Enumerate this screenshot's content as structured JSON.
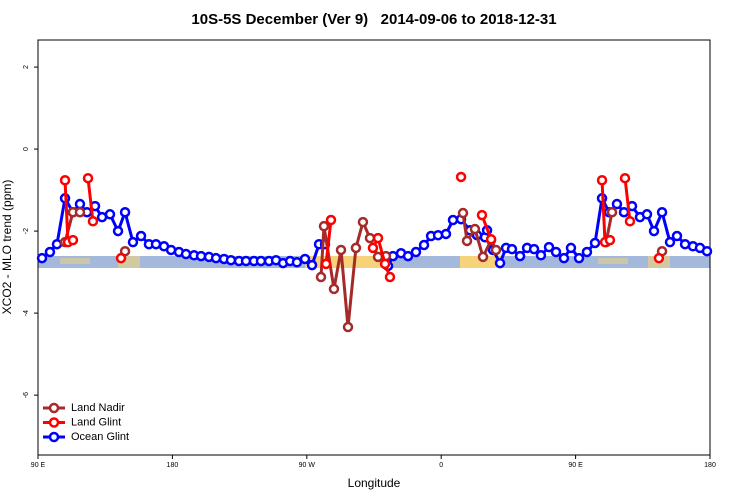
{
  "chart_data": {
    "type": "line",
    "title": "10S-5S December (Ver 9)   2014-09-06 to 2018-12-31",
    "x_label": "Longitude",
    "y_label": "XCO2 - MLO trend (ppm)",
    "xlim": [
      90,
      540
    ],
    "ylim": [
      -7.46,
      2.66
    ],
    "xticks": [
      {
        "value": 90,
        "label": "90 E"
      },
      180,
      {
        "value": 270,
        "label": "90 W"
      },
      {
        "value": 360,
        "label": "0"
      },
      {
        "value": 450,
        "label": "90 E"
      },
      {
        "value": 540,
        "label": "180"
      }
    ],
    "yticks": [
      -6,
      -4,
      -2,
      0,
      2
    ],
    "legend": "bottom-left",
    "series": [
      {
        "name": "Land Nadir",
        "color": "#a52a2a",
        "x": [
          108.1,
          113.4,
          118.1,
          null,
          148.3,
          null,
          279.5,
          281.5,
          288.2,
          292.9,
          297.6,
          302.9,
          307.6,
          312.3,
          317.7,
          323,
          null,
          374.6,
          377.3,
          382.6,
          388,
          393.4,
          396.7,
          null,
          470.4,
          474.4,
          null,
          507.9
        ],
        "values": [
          -2.27,
          -1.54,
          -1.54,
          null,
          -2.49,
          null,
          -3.12,
          -1.88,
          -3.41,
          -2.46,
          -4.34,
          -2.41,
          -1.78,
          -2.17,
          -2.63,
          -2.61,
          null,
          -1.56,
          -2.24,
          -1.95,
          -2.63,
          -2.22,
          -2.46,
          null,
          -2.27,
          -1.54,
          null,
          -2.49
        ]
      },
      {
        "name": "Land Glint",
        "color": "#ff0000",
        "x": [
          108.1,
          110.1,
          113.4,
          null,
          123.5,
          126.8,
          null,
          145.6,
          null,
          282.9,
          286.2,
          null,
          314.3,
          317.7,
          322.4,
          325.7,
          null,
          373.3,
          null,
          387.3,
          393.4,
          null,
          467.7,
          469.7,
          473,
          null,
          483.1,
          486.4,
          null,
          505.8
        ],
        "values": [
          -0.76,
          -2.27,
          -2.22,
          null,
          -0.71,
          -1.76,
          null,
          -2.66,
          null,
          -2.8,
          -1.73,
          null,
          -2.41,
          -2.17,
          -2.8,
          -3.12,
          null,
          -0.68,
          null,
          -1.61,
          -2.2,
          null,
          -0.76,
          -2.27,
          -2.22,
          null,
          -0.71,
          -1.76,
          null,
          -2.66
        ]
      },
      {
        "name": "Ocean Glint",
        "color": "#0000ff",
        "x": [
          92.7,
          98,
          102.7,
          108.1,
          113.4,
          118.1,
          122.8,
          128.2,
          132.9,
          138.2,
          143.6,
          148.3,
          153.6,
          159,
          164.3,
          169,
          174.4,
          179.1,
          184.4,
          189.1,
          194.5,
          199.2,
          204.5,
          209.2,
          214.6,
          219.2,
          224.6,
          229.3,
          234.6,
          239.3,
          244.7,
          249.4,
          254.1,
          258.8,
          263.4,
          268.8,
          273.5,
          278.2,
          282.2,
          null,
          324.4,
          327.7,
          333.1,
          337.8,
          343.1,
          348.5,
          353.2,
          357.9,
          363.2,
          367.9,
          373.3,
          379.3,
          384,
          389.3,
          390.7,
          394.7,
          399.4,
          403.4,
          407.4,
          412.8,
          417.5,
          422.2,
          426.8,
          432.2,
          436.9,
          442.2,
          446.9,
          452.3,
          457.6,
          463,
          467.7,
          472.4,
          477.7,
          482.4,
          487.8,
          493.1,
          497.8,
          502.5,
          507.9,
          513.2,
          517.9,
          523.3,
          528.6,
          533.3,
          538
        ],
        "values": [
          -2.66,
          -2.51,
          -2.32,
          -1.2,
          -1.54,
          -1.34,
          -1.54,
          -1.39,
          -1.66,
          -1.59,
          -2,
          -1.54,
          -2.27,
          -2.12,
          -2.32,
          -2.32,
          -2.37,
          -2.46,
          -2.51,
          -2.56,
          -2.59,
          -2.61,
          -2.63,
          -2.66,
          -2.68,
          -2.71,
          -2.73,
          -2.73,
          -2.73,
          -2.73,
          -2.73,
          -2.71,
          -2.78,
          -2.73,
          -2.76,
          -2.68,
          -2.83,
          -2.32,
          -2.32,
          null,
          -2.85,
          -2.61,
          -2.54,
          -2.61,
          -2.51,
          -2.34,
          -2.12,
          -2.1,
          -2.07,
          -1.73,
          -1.71,
          -1.98,
          -2.1,
          -2.15,
          -1.98,
          -2.46,
          -2.78,
          -2.41,
          -2.44,
          -2.61,
          -2.41,
          -2.44,
          -2.59,
          -2.39,
          -2.51,
          -2.66,
          -2.41,
          -2.66,
          -2.51,
          -2.29,
          -1.2,
          -1.54,
          -1.34,
          -1.54,
          -1.39,
          -1.66,
          -1.59,
          -2,
          -1.54,
          -2.27,
          -2.12,
          -2.32,
          -2.37,
          -2.41,
          -2.49
        ]
      }
    ]
  }
}
